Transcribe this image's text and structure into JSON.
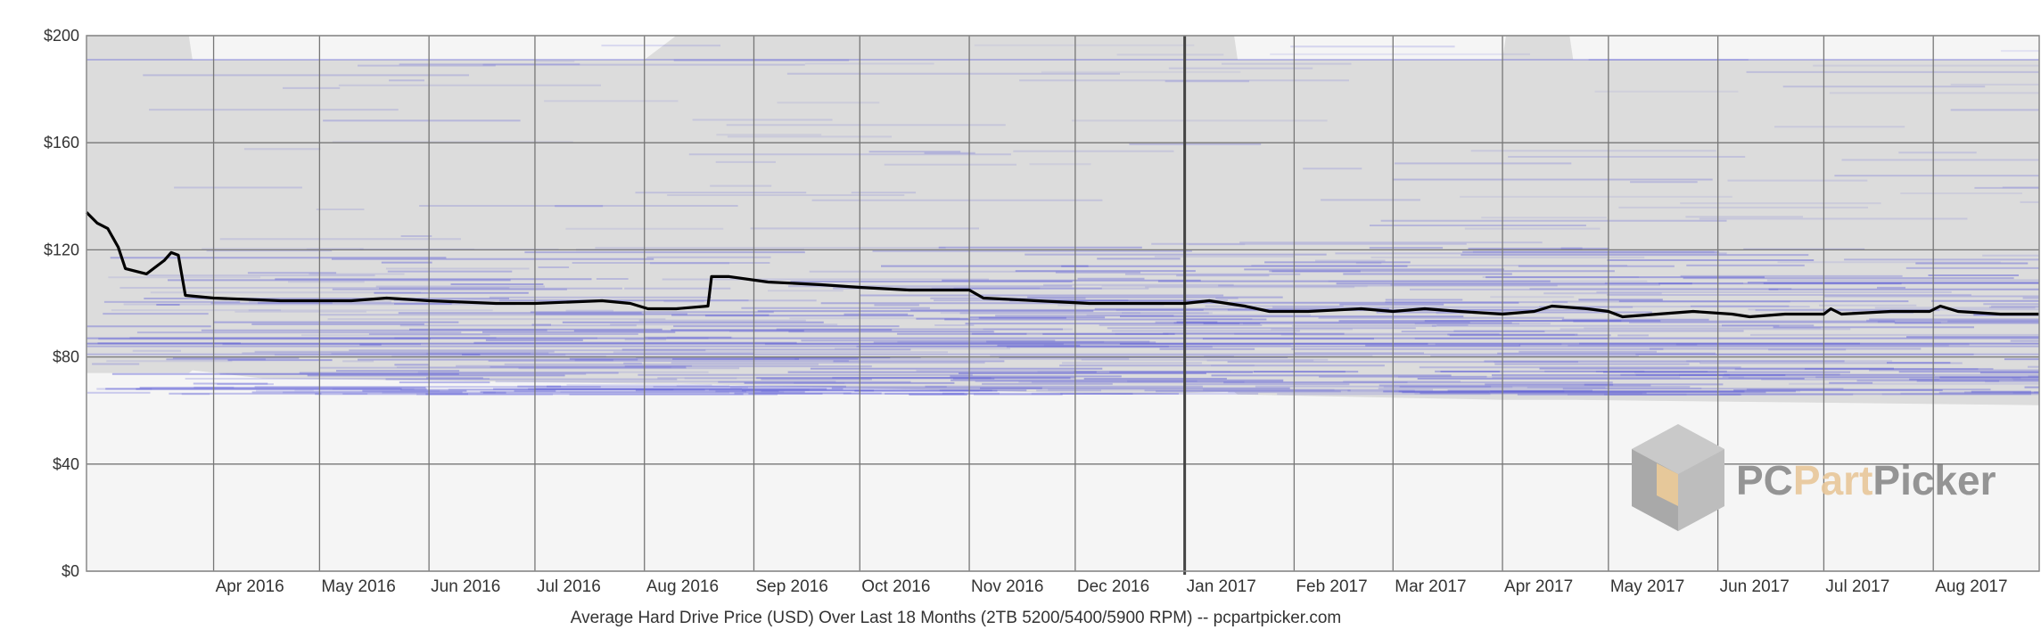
{
  "chart_data": {
    "type": "line",
    "title": "Average Hard Drive Price (USD) Over Last 18 Months (2TB 5200/5400/5900 RPM) -- pcpartpicker.com",
    "xlabel": "",
    "ylabel": "",
    "ylim": [
      0,
      200
    ],
    "y_ticks": [
      {
        "value": 0,
        "label": "$0"
      },
      {
        "value": 40,
        "label": "$40"
      },
      {
        "value": 80,
        "label": "$80"
      },
      {
        "value": 120,
        "label": "$120"
      },
      {
        "value": 160,
        "label": "$160"
      },
      {
        "value": 200,
        "label": "$200"
      }
    ],
    "x_range": [
      "2016-02-25",
      "2017-08-31"
    ],
    "x_ticks": [
      {
        "date": "2016-04-01",
        "label": "Apr 2016"
      },
      {
        "date": "2016-05-01",
        "label": "May 2016"
      },
      {
        "date": "2016-06-01",
        "label": "Jun 2016"
      },
      {
        "date": "2016-07-01",
        "label": "Jul 2016"
      },
      {
        "date": "2016-08-01",
        "label": "Aug 2016"
      },
      {
        "date": "2016-09-01",
        "label": "Sep 2016"
      },
      {
        "date": "2016-10-01",
        "label": "Oct 2016"
      },
      {
        "date": "2016-11-01",
        "label": "Nov 2016"
      },
      {
        "date": "2016-12-01",
        "label": "Dec 2016"
      },
      {
        "date": "2017-01-01",
        "label": "Jan 2017"
      },
      {
        "date": "2017-02-01",
        "label": "Feb 2017"
      },
      {
        "date": "2017-03-01",
        "label": "Mar 2017"
      },
      {
        "date": "2017-04-01",
        "label": "Apr 2017"
      },
      {
        "date": "2017-05-01",
        "label": "May 2017"
      },
      {
        "date": "2017-06-01",
        "label": "Jun 2017"
      },
      {
        "date": "2017-07-01",
        "label": "Jul 2017"
      },
      {
        "date": "2017-08-01",
        "label": "Aug 2017"
      }
    ],
    "year_divider": "2017-01-01",
    "grid": true,
    "series": [
      {
        "color": "#000000",
        "points": [
          [
            "2016-02-25",
            134
          ],
          [
            "2016-02-28",
            130
          ],
          [
            "2016-03-02",
            128
          ],
          [
            "2016-03-05",
            121
          ],
          [
            "2016-03-07",
            113
          ],
          [
            "2016-03-10",
            112
          ],
          [
            "2016-03-13",
            111
          ],
          [
            "2016-03-15",
            113
          ],
          [
            "2016-03-18",
            116
          ],
          [
            "2016-03-20",
            119
          ],
          [
            "2016-03-22",
            118
          ],
          [
            "2016-03-24",
            103
          ],
          [
            "2016-04-01",
            102
          ],
          [
            "2016-04-20",
            101
          ],
          [
            "2016-05-10",
            101
          ],
          [
            "2016-05-20",
            102
          ],
          [
            "2016-06-01",
            101
          ],
          [
            "2016-06-20",
            100
          ],
          [
            "2016-07-01",
            100
          ],
          [
            "2016-07-20",
            101
          ],
          [
            "2016-07-28",
            100
          ],
          [
            "2016-08-02",
            98
          ],
          [
            "2016-08-10",
            98
          ],
          [
            "2016-08-19",
            99
          ],
          [
            "2016-08-20",
            110
          ],
          [
            "2016-08-25",
            110
          ],
          [
            "2016-09-05",
            108
          ],
          [
            "2016-09-20",
            107
          ],
          [
            "2016-10-01",
            106
          ],
          [
            "2016-10-15",
            105
          ],
          [
            "2016-11-01",
            105
          ],
          [
            "2016-11-05",
            102
          ],
          [
            "2016-11-20",
            101
          ],
          [
            "2016-12-05",
            100
          ],
          [
            "2016-12-20",
            100
          ],
          [
            "2017-01-01",
            100
          ],
          [
            "2017-01-08",
            101
          ],
          [
            "2017-01-18",
            99
          ],
          [
            "2017-01-25",
            97
          ],
          [
            "2017-02-05",
            97
          ],
          [
            "2017-02-20",
            98
          ],
          [
            "2017-03-01",
            97
          ],
          [
            "2017-03-10",
            98
          ],
          [
            "2017-03-20",
            97
          ],
          [
            "2017-04-01",
            96
          ],
          [
            "2017-04-10",
            97
          ],
          [
            "2017-04-15",
            99
          ],
          [
            "2017-04-25",
            98
          ],
          [
            "2017-05-01",
            97
          ],
          [
            "2017-05-05",
            95
          ],
          [
            "2017-05-15",
            96
          ],
          [
            "2017-05-25",
            97
          ],
          [
            "2017-06-05",
            96
          ],
          [
            "2017-06-10",
            95
          ],
          [
            "2017-06-20",
            96
          ],
          [
            "2017-07-01",
            96
          ],
          [
            "2017-07-03",
            98
          ],
          [
            "2017-07-06",
            96
          ],
          [
            "2017-07-20",
            97
          ],
          [
            "2017-07-31",
            97
          ],
          [
            "2017-08-03",
            99
          ],
          [
            "2017-08-08",
            97
          ],
          [
            "2017-08-20",
            96
          ],
          [
            "2017-08-31",
            96
          ]
        ]
      }
    ],
    "band": {
      "color": "#dcdcdc",
      "points": [
        [
          "2016-02-25",
          200,
          74
        ],
        [
          "2016-03-25",
          200,
          74
        ],
        [
          "2016-03-26",
          191,
          75
        ],
        [
          "2016-04-15",
          191,
          72
        ],
        [
          "2016-08-01",
          191,
          70
        ],
        [
          "2016-08-10",
          200,
          70
        ],
        [
          "2016-12-15",
          200,
          66
        ],
        [
          "2017-01-15",
          200,
          67
        ],
        [
          "2017-01-16",
          191,
          66
        ],
        [
          "2017-04-01",
          191,
          64
        ],
        [
          "2017-04-02",
          200,
          64
        ],
        [
          "2017-04-20",
          200,
          64
        ],
        [
          "2017-04-21",
          191,
          64
        ],
        [
          "2017-08-31",
          191,
          62
        ]
      ]
    },
    "watermark": "PCPartPicker",
    "watermark_colors": {
      "pc": "#8a8a8a",
      "part": "#e8c79a",
      "picker": "#8a8a8a"
    },
    "colors": {
      "background": "#f5f5f5",
      "band": "#dcdcdc",
      "listings": "#5b5bd6",
      "grid": "#777777",
      "line": "#000000"
    }
  }
}
